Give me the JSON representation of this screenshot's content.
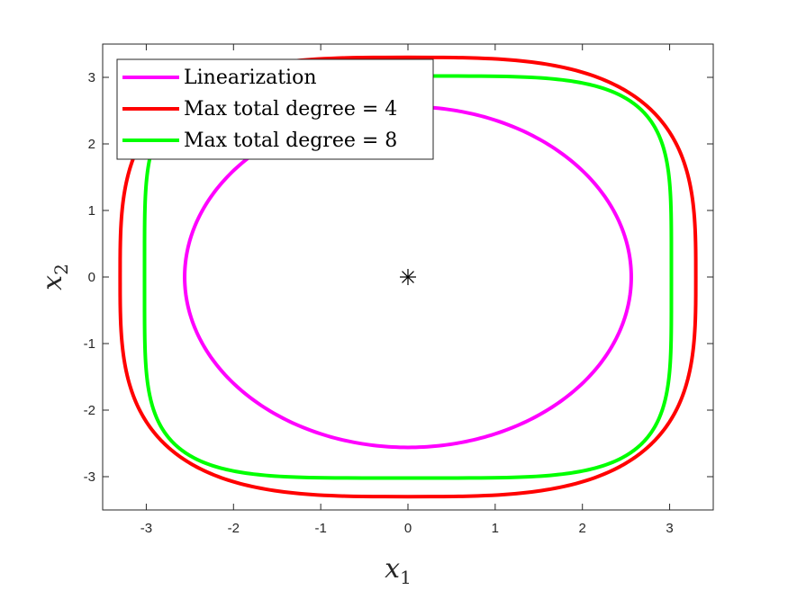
{
  "chart_data": {
    "type": "line",
    "xlabel": "x",
    "xlabel_sub": "1",
    "ylabel": "x",
    "ylabel_sub": "2",
    "xlim": [
      -3.5,
      3.5
    ],
    "ylim": [
      -3.5,
      3.5
    ],
    "xticks": [
      -3,
      -2,
      -1,
      0,
      1,
      2,
      3
    ],
    "yticks": [
      -3,
      -2,
      -1,
      0,
      1,
      2,
      3
    ],
    "xtick_labels": [
      "-3",
      "-2",
      "-1",
      "0",
      "1",
      "2",
      "3"
    ],
    "ytick_labels": [
      "-3",
      "-2",
      "-1",
      "0",
      "1",
      "2",
      "3"
    ],
    "grid": false,
    "legend_position": "top-left",
    "series": [
      {
        "name": "Linearization",
        "color": "#ff00ff",
        "shape": "closed-curve",
        "x_radius": 2.56,
        "y_radius": 2.56,
        "exponent": 2.0
      },
      {
        "name": "Max total degree = 4",
        "color": "#ff0000",
        "shape": "closed-curve",
        "x_radius": 3.3,
        "y_radius": 3.3,
        "exponent": 3.2
      },
      {
        "name": "Max total degree = 8",
        "color": "#00ff00",
        "shape": "closed-curve",
        "x_radius": 3.02,
        "y_radius": 3.02,
        "exponent": 4.6
      }
    ],
    "markers": [
      {
        "symbol": "asterisk",
        "x": 0,
        "y": 0,
        "color": "#000000"
      }
    ]
  }
}
